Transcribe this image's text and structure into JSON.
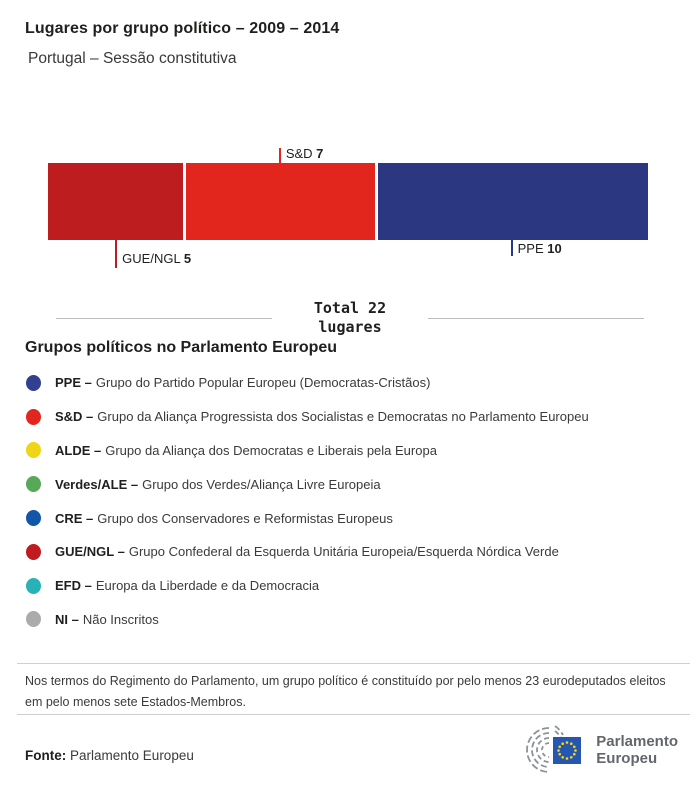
{
  "header": {
    "title": "Lugares por grupo político – 2009 – 2014",
    "subtitle": "Portugal – Sessão constitutiva"
  },
  "chart_data": {
    "type": "bar",
    "stacked": true,
    "orientation": "horizontal",
    "title": "Lugares por grupo político – 2009 – 2014",
    "subtitle": "Portugal – Sessão constitutiva",
    "categories": [
      "GUE/NGL",
      "S&D",
      "PPE"
    ],
    "values": [
      5,
      7,
      10
    ],
    "total": 22,
    "segments": [
      {
        "name": "GUE/NGL",
        "value": 5,
        "color": "#bd1d1e",
        "callout": "below-long"
      },
      {
        "name": "S&D",
        "value": 7,
        "color": "#e2251d",
        "callout": "above"
      },
      {
        "name": "PPE",
        "value": 10,
        "color": "#2b3780",
        "callout": "below-short"
      }
    ]
  },
  "total": {
    "line1": "Total 22",
    "line2": "lugares"
  },
  "legend": {
    "heading": "Grupos políticos no Parlamento Europeu",
    "items": [
      {
        "abbr": "PPE –",
        "desc": "Grupo do Partido Popular Europeu (Democratas-Cristãos)",
        "color": "#32408f"
      },
      {
        "abbr": "S&D –",
        "desc": "Grupo da Aliança Progressista dos Socialistas e Democratas no Parlamento Europeu",
        "color": "#e2251d"
      },
      {
        "abbr": "ALDE –",
        "desc": "Grupo da Aliança dos Democratas e Liberais pela Europa",
        "color": "#eed616"
      },
      {
        "abbr": "Verdes/ALE –",
        "desc": "Grupo dos Verdes/Aliança Livre Europeia",
        "color": "#57a857"
      },
      {
        "abbr": "CRE –",
        "desc": "Grupo dos Conservadores e Reformistas Europeus",
        "color": "#1157a7"
      },
      {
        "abbr": "GUE/NGL –",
        "desc": "Grupo Confederal da Esquerda Unitária Europeia/Esquerda Nórdica Verde",
        "color": "#c01b1e"
      },
      {
        "abbr": "EFD –",
        "desc": "Europa da Liberdade e da Democracia",
        "color": "#27b2b7"
      },
      {
        "abbr": "NI –",
        "desc": "Não Inscritos",
        "color": "#ababab"
      }
    ]
  },
  "footnote": "Nos termos do Regimento do Parlamento, um grupo político é constituído por pelo menos 23 eurodeputados eleitos em pelo menos sete Estados-Membros.",
  "source": {
    "label": "Fonte:",
    "value": "Parlamento Europeu"
  },
  "logo": {
    "line1": "Parlamento",
    "line2": "Europeu"
  }
}
